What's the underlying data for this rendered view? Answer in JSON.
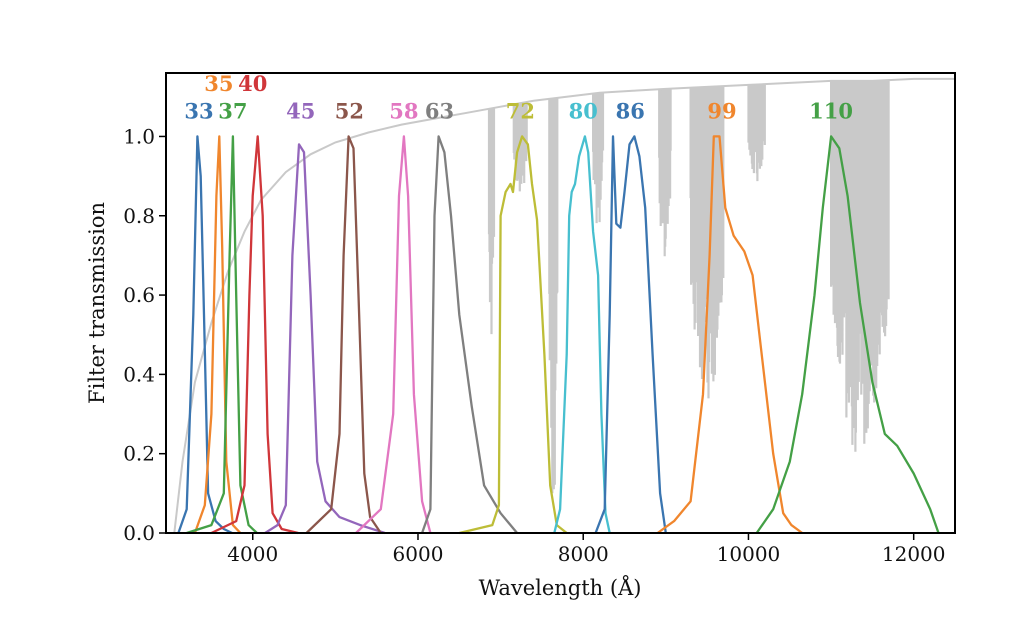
{
  "chart_data": {
    "type": "line",
    "xlabel": "Wavelength  (Å)",
    "ylabel": "Filter transmission",
    "xlim": [
      2950,
      12500
    ],
    "ylim": [
      0.0,
      1.16
    ],
    "x_ticks": [
      4000,
      6000,
      8000,
      10000,
      12000
    ],
    "x_tick_labels": [
      "4000",
      "6000",
      "8000",
      "10000",
      "12000"
    ],
    "y_ticks": [
      0.0,
      0.2,
      0.4,
      0.6,
      0.8,
      1.0
    ],
    "y_tick_labels": [
      "0.0",
      "0.2",
      "0.4",
      "0.6",
      "0.8",
      "1.0"
    ],
    "grid": false,
    "background_curve": {
      "color": "#c9c9c9",
      "x": [
        3050,
        3150,
        3300,
        3500,
        3700,
        3900,
        4100,
        4400,
        4700,
        5000,
        5400,
        5800,
        6200,
        6600,
        7000,
        7400,
        7800,
        8200,
        8600,
        9000,
        9500,
        10000,
        10500,
        11000,
        11500,
        12000,
        12500
      ],
      "y": [
        0.0,
        0.18,
        0.38,
        0.53,
        0.66,
        0.76,
        0.84,
        0.91,
        0.955,
        0.985,
        1.01,
        1.03,
        1.045,
        1.06,
        1.075,
        1.09,
        1.1,
        1.11,
        1.115,
        1.12,
        1.125,
        1.13,
        1.135,
        1.14,
        1.14,
        1.145,
        1.145
      ],
      "absorption_bands": [
        {
          "x0": 6860,
          "x1": 6920,
          "depth": 0.6
        },
        {
          "x0": 7160,
          "x1": 7320,
          "depth": 0.25
        },
        {
          "x0": 7590,
          "x1": 7690,
          "depth": 1.08
        },
        {
          "x0": 8120,
          "x1": 8240,
          "depth": 0.35
        },
        {
          "x0": 8920,
          "x1": 9060,
          "depth": 0.45
        },
        {
          "x0": 9300,
          "x1": 9700,
          "depth": 0.8
        },
        {
          "x0": 10000,
          "x1": 10200,
          "depth": 0.25
        },
        {
          "x0": 11000,
          "x1": 11700,
          "depth": 0.95
        }
      ]
    },
    "series": [
      {
        "name": "33",
        "color": "#3a75b0",
        "label_x": 3350,
        "label_y": 1.045,
        "x": [
          3100,
          3200,
          3280,
          3330,
          3370,
          3410,
          3460,
          3550,
          3650,
          3750
        ],
        "y": [
          0.0,
          0.06,
          0.55,
          1.0,
          0.9,
          0.55,
          0.1,
          0.03,
          0.01,
          0.0
        ]
      },
      {
        "name": "35",
        "color": "#f0862d",
        "label_x": 3590,
        "label_y": 1.115,
        "x": [
          3300,
          3420,
          3500,
          3560,
          3595,
          3630,
          3680,
          3760,
          3850
        ],
        "y": [
          0.0,
          0.07,
          0.3,
          0.85,
          1.0,
          0.72,
          0.18,
          0.02,
          0.0
        ]
      },
      {
        "name": "37",
        "color": "#44a046",
        "label_x": 3760,
        "label_y": 1.045,
        "x": [
          3200,
          3500,
          3650,
          3720,
          3760,
          3800,
          3850,
          3950,
          4050
        ],
        "y": [
          0.0,
          0.02,
          0.1,
          0.7,
          1.0,
          0.6,
          0.12,
          0.02,
          0.0
        ]
      },
      {
        "name": "40",
        "color": "#d0363a",
        "label_x": 4000,
        "label_y": 1.115,
        "x": [
          3500,
          3800,
          3900,
          3960,
          4000,
          4060,
          4120,
          4180,
          4240,
          4350,
          4550
        ],
        "y": [
          0.0,
          0.03,
          0.12,
          0.6,
          0.85,
          1.0,
          0.8,
          0.25,
          0.05,
          0.01,
          0.0
        ]
      },
      {
        "name": "45",
        "color": "#9366bb",
        "label_x": 4580,
        "label_y": 1.045,
        "x": [
          4150,
          4300,
          4400,
          4480,
          4560,
          4620,
          4700,
          4780,
          4880,
          5050,
          5300,
          5600
        ],
        "y": [
          0.0,
          0.02,
          0.07,
          0.7,
          0.98,
          0.96,
          0.6,
          0.18,
          0.08,
          0.04,
          0.02,
          0.0
        ]
      },
      {
        "name": "52",
        "color": "#8b564b",
        "label_x": 5170,
        "label_y": 1.045,
        "x": [
          4650,
          4950,
          5050,
          5100,
          5160,
          5220,
          5280,
          5350,
          5420,
          5550
        ],
        "y": [
          0.0,
          0.06,
          0.25,
          0.7,
          1.0,
          0.97,
          0.6,
          0.15,
          0.04,
          0.0
        ]
      },
      {
        "name": "58",
        "color": "#e277c1",
        "label_x": 5830,
        "label_y": 1.045,
        "x": [
          5250,
          5550,
          5700,
          5770,
          5830,
          5880,
          5950,
          6050,
          6150
        ],
        "y": [
          0.0,
          0.06,
          0.3,
          0.85,
          1.0,
          0.85,
          0.35,
          0.08,
          0.0
        ]
      },
      {
        "name": "63",
        "color": "#7f7f7f",
        "label_x": 6260,
        "label_y": 1.045,
        "x": [
          6050,
          6150,
          6200,
          6250,
          6320,
          6400,
          6500,
          6650,
          6800,
          7000,
          7200
        ],
        "y": [
          0.0,
          0.06,
          0.8,
          1.0,
          0.96,
          0.8,
          0.55,
          0.32,
          0.12,
          0.05,
          0.0
        ]
      },
      {
        "name": "72",
        "color": "#bdbd37",
        "label_x": 7240,
        "label_y": 1.045,
        "x": [
          6500,
          6900,
          6980,
          7000,
          7060,
          7120,
          7150,
          7200,
          7260,
          7330,
          7380,
          7440,
          7530,
          7600,
          7680,
          7800
        ],
        "y": [
          0.0,
          0.02,
          0.07,
          0.8,
          0.86,
          0.88,
          0.86,
          0.96,
          1.0,
          0.98,
          0.88,
          0.79,
          0.45,
          0.12,
          0.02,
          0.0
        ]
      },
      {
        "name": "80",
        "color": "#47bfcf",
        "label_x": 8000,
        "label_y": 1.045,
        "x": [
          7650,
          7720,
          7800,
          7830,
          7860,
          7900,
          7950,
          8020,
          8060,
          8120,
          8180,
          8220,
          8270,
          8320
        ],
        "y": [
          0.0,
          0.06,
          0.45,
          0.8,
          0.86,
          0.88,
          0.95,
          1.0,
          0.96,
          0.76,
          0.65,
          0.3,
          0.05,
          0.0
        ]
      },
      {
        "name": "86",
        "color": "#3a75b0",
        "label_x": 8570,
        "label_y": 1.045,
        "x": [
          8150,
          8260,
          8320,
          8360,
          8400,
          8450,
          8500,
          8560,
          8620,
          8680,
          8750,
          8840,
          8930,
          9000
        ],
        "y": [
          0.0,
          0.06,
          0.55,
          1.0,
          0.78,
          0.77,
          0.86,
          0.98,
          1.0,
          0.95,
          0.82,
          0.45,
          0.1,
          0.0
        ]
      },
      {
        "name": "99",
        "color": "#f0862d",
        "label_x": 9680,
        "label_y": 1.045,
        "x": [
          8900,
          9100,
          9300,
          9450,
          9530,
          9580,
          9650,
          9720,
          9820,
          9950,
          10050,
          10150,
          10300,
          10420,
          10520,
          10650
        ],
        "y": [
          0.0,
          0.03,
          0.08,
          0.35,
          0.7,
          1.0,
          1.0,
          0.82,
          0.75,
          0.71,
          0.65,
          0.47,
          0.2,
          0.05,
          0.02,
          0.0
        ]
      },
      {
        "name": "110",
        "color": "#44a046",
        "label_x": 11000,
        "label_y": 1.045,
        "x": [
          10100,
          10300,
          10500,
          10650,
          10800,
          10900,
          11000,
          11100,
          11200,
          11350,
          11500,
          11650,
          11800,
          12000,
          12200,
          12300
        ],
        "y": [
          0.0,
          0.06,
          0.18,
          0.35,
          0.6,
          0.82,
          1.0,
          0.97,
          0.85,
          0.58,
          0.38,
          0.25,
          0.22,
          0.15,
          0.06,
          0.0
        ]
      }
    ]
  }
}
